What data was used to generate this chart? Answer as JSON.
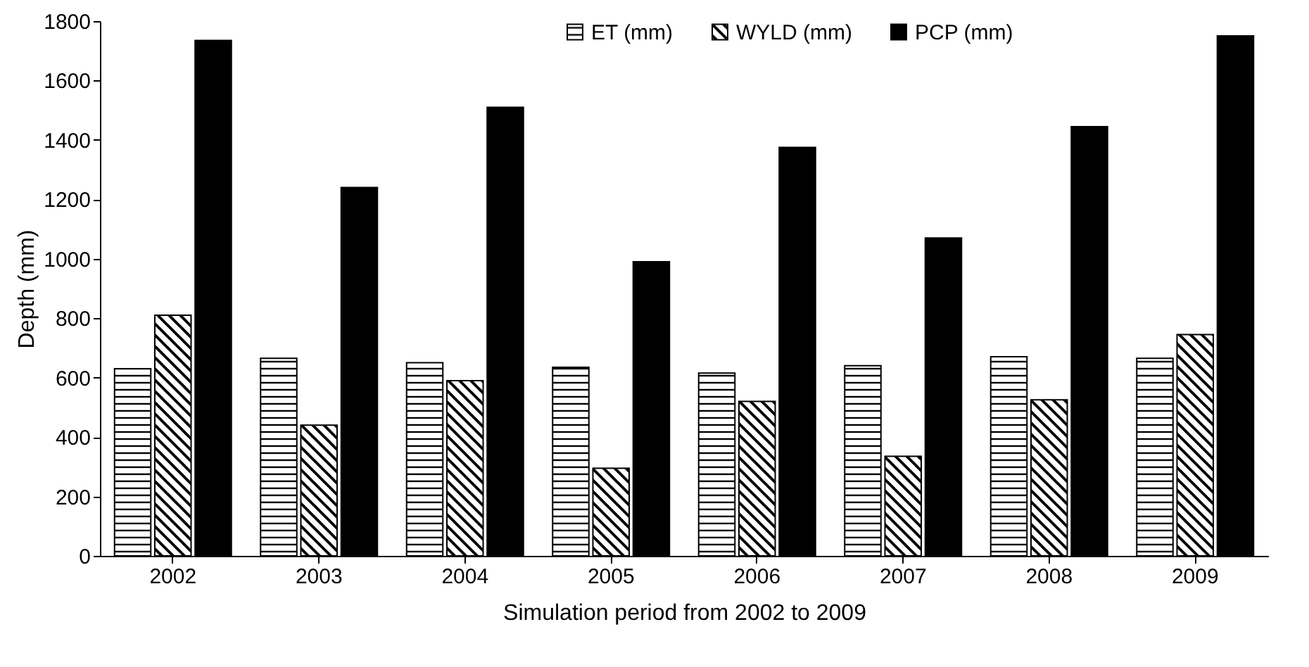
{
  "chart_data": {
    "type": "bar",
    "xlabel": "Simulation period from 2002 to 2009",
    "ylabel": "Depth (mm)",
    "categories": [
      "2002",
      "2003",
      "2004",
      "2005",
      "2006",
      "2007",
      "2008",
      "2009"
    ],
    "series": [
      {
        "name": "ET (mm)",
        "color": "#000000",
        "values": [
          630,
          665,
          650,
          635,
          615,
          640,
          670,
          665
        ]
      },
      {
        "name": "WYLD (mm)",
        "color": "#000000",
        "values": [
          810,
          440,
          590,
          295,
          520,
          335,
          525,
          745
        ]
      },
      {
        "name": "PCP (mm)",
        "color": "#000000",
        "values": [
          1735,
          1240,
          1510,
          990,
          1375,
          1070,
          1445,
          1750
        ]
      }
    ],
    "ylim": [
      0,
      1800
    ],
    "yticks": [
      0,
      200,
      400,
      600,
      800,
      1000,
      1200,
      1400,
      1600,
      1800
    ],
    "grid": false,
    "legend": "top"
  }
}
